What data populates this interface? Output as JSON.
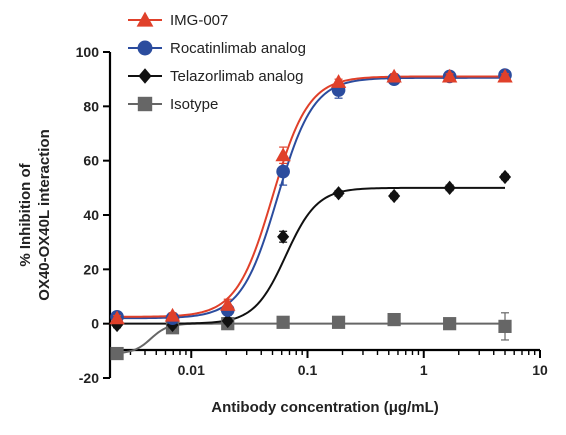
{
  "chart_data": {
    "type": "scatter",
    "title": "",
    "xlabel": "Antibody concentration (μg/mL)",
    "ylabel_line1": "% Inhibition of",
    "ylabel_line2": "OX40-OX40L interaction",
    "x_scale": "log",
    "xlim": [
      0.002,
      10
    ],
    "ylim": [
      -20,
      100
    ],
    "x_ticks": [
      {
        "value": 0.01,
        "label": "0.01"
      },
      {
        "value": 0.1,
        "label": "0.1"
      },
      {
        "value": 1,
        "label": "1"
      },
      {
        "value": 10,
        "label": "10"
      }
    ],
    "y_ticks": [
      {
        "value": -20,
        "label": "-20"
      },
      {
        "value": 0,
        "label": "0"
      },
      {
        "value": 20,
        "label": "20"
      },
      {
        "value": 40,
        "label": "40"
      },
      {
        "value": 60,
        "label": "60"
      },
      {
        "value": 80,
        "label": "80"
      },
      {
        "value": 100,
        "label": "100"
      }
    ],
    "grid": false,
    "legend_position": "top-left",
    "series": [
      {
        "name": "IMG-007",
        "color": "#e0402a",
        "marker": "triangle",
        "x": [
          0.0023,
          0.0069,
          0.0206,
          0.0617,
          0.185,
          0.556,
          1.67,
          5.0
        ],
        "y": [
          2,
          3,
          7,
          62,
          89,
          91,
          91,
          91
        ],
        "err": [
          1,
          1,
          2,
          3,
          1,
          1,
          1,
          1
        ],
        "fit": {
          "bottom": 2.5,
          "top": 91,
          "ec50": 0.05,
          "hill": 2.8
        }
      },
      {
        "name": "Rocatinlimab analog",
        "color": "#2b4c9e",
        "marker": "circle",
        "x": [
          0.0023,
          0.0069,
          0.0206,
          0.0617,
          0.185,
          0.556,
          1.67,
          5.0
        ],
        "y": [
          2.5,
          2,
          5,
          56,
          86,
          90,
          91,
          91.5
        ],
        "err": [
          1,
          1,
          2,
          5,
          3,
          1,
          1,
          1
        ],
        "fit": {
          "bottom": 2,
          "top": 90.5,
          "ec50": 0.055,
          "hill": 2.8
        }
      },
      {
        "name": "Telazorlimab analog",
        "color": "#111111",
        "marker": "diamond",
        "x": [
          0.0023,
          0.0069,
          0.0206,
          0.0617,
          0.185,
          0.556,
          1.67,
          5.0
        ],
        "y": [
          -0.5,
          -0.5,
          1,
          32,
          48,
          47,
          50,
          54
        ],
        "err": [
          1,
          1,
          1,
          2,
          1,
          1,
          1,
          1
        ],
        "fit": {
          "bottom": 0,
          "top": 50,
          "ec50": 0.065,
          "hill": 3.2
        }
      },
      {
        "name": "Isotype",
        "color": "#666666",
        "marker": "square",
        "x": [
          0.0023,
          0.0069,
          0.0206,
          0.0617,
          0.185,
          0.556,
          1.67,
          5.0
        ],
        "y": [
          -11,
          -1.5,
          0,
          0.5,
          0.5,
          1.5,
          0,
          -1
        ],
        "err": [
          1,
          1,
          1,
          2,
          1,
          1,
          2,
          5
        ],
        "fit": {
          "bottom": -11,
          "top": 0,
          "ec50": 0.0045,
          "hill": 6
        }
      }
    ]
  }
}
